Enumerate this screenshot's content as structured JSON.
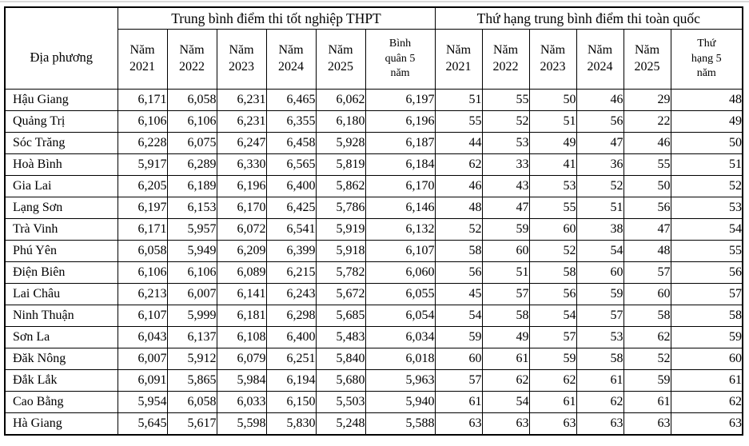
{
  "page": {
    "background": "#ffffff",
    "top_divider_color": "#d9d9d9",
    "table_border_color": "#000000"
  },
  "table": {
    "corner_header": "Địa phương",
    "groups": [
      {
        "label": "Trung bình điểm thi tốt nghiệp THPT"
      },
      {
        "label": "Thứ hạng trung bình điểm thi toàn quốc"
      }
    ],
    "year_headers": [
      "Năm\n2021",
      "Năm\n2022",
      "Năm\n2023",
      "Năm\n2024",
      "Năm\n2025"
    ],
    "avg_header": "Bình\nquân 5\nnăm",
    "rank5_header": "Thứ\nhạng 5\nnăm",
    "rows": [
      {
        "name": "Hậu Giang",
        "scores": [
          "6,171",
          "6,058",
          "6,231",
          "6,465",
          "6,062"
        ],
        "avg": "6,197",
        "ranks": [
          "51",
          "55",
          "50",
          "46",
          "29"
        ],
        "rank5": "48"
      },
      {
        "name": "Quảng Trị",
        "scores": [
          "6,106",
          "6,106",
          "6,231",
          "6,355",
          "6,180"
        ],
        "avg": "6,196",
        "ranks": [
          "55",
          "52",
          "51",
          "56",
          "22"
        ],
        "rank5": "49"
      },
      {
        "name": "Sóc Trăng",
        "scores": [
          "6,228",
          "6,075",
          "6,247",
          "6,458",
          "5,928"
        ],
        "avg": "6,187",
        "ranks": [
          "44",
          "53",
          "49",
          "47",
          "46"
        ],
        "rank5": "50"
      },
      {
        "name": "Hoà Bình",
        "scores": [
          "5,917",
          "6,289",
          "6,330",
          "6,565",
          "5,819"
        ],
        "avg": "6,184",
        "ranks": [
          "62",
          "33",
          "41",
          "36",
          "55"
        ],
        "rank5": "51"
      },
      {
        "name": "Gia Lai",
        "scores": [
          "6,205",
          "6,189",
          "6,196",
          "6,400",
          "5,862"
        ],
        "avg": "6,170",
        "ranks": [
          "46",
          "43",
          "53",
          "52",
          "50"
        ],
        "rank5": "52"
      },
      {
        "name": "Lạng Sơn",
        "scores": [
          "6,197",
          "6,153",
          "6,170",
          "6,425",
          "5,786"
        ],
        "avg": "6,146",
        "ranks": [
          "48",
          "47",
          "55",
          "51",
          "56"
        ],
        "rank5": "53"
      },
      {
        "name": "Trà Vinh",
        "scores": [
          "6,171",
          "5,957",
          "6,072",
          "6,541",
          "5,919"
        ],
        "avg": "6,132",
        "ranks": [
          "52",
          "59",
          "60",
          "38",
          "47"
        ],
        "rank5": "54"
      },
      {
        "name": "Phú Yên",
        "scores": [
          "6,058",
          "5,949",
          "6,209",
          "6,399",
          "5,918"
        ],
        "avg": "6,107",
        "ranks": [
          "58",
          "60",
          "52",
          "54",
          "48"
        ],
        "rank5": "55"
      },
      {
        "name": "Điện Biên",
        "scores": [
          "6,106",
          "6,106",
          "6,089",
          "6,215",
          "5,782"
        ],
        "avg": "6,060",
        "ranks": [
          "56",
          "51",
          "58",
          "60",
          "57"
        ],
        "rank5": "56"
      },
      {
        "name": "Lai Châu",
        "scores": [
          "6,213",
          "6,007",
          "6,141",
          "6,243",
          "5,672"
        ],
        "avg": "6,055",
        "ranks": [
          "45",
          "57",
          "56",
          "59",
          "60"
        ],
        "rank5": "57"
      },
      {
        "name": "Ninh Thuận",
        "scores": [
          "6,107",
          "5,999",
          "6,181",
          "6,298",
          "5,685"
        ],
        "avg": "6,054",
        "ranks": [
          "54",
          "58",
          "54",
          "57",
          "58"
        ],
        "rank5": "58"
      },
      {
        "name": "Sơn La",
        "scores": [
          "6,043",
          "6,137",
          "6,108",
          "6,400",
          "5,483"
        ],
        "avg": "6,034",
        "ranks": [
          "59",
          "49",
          "57",
          "53",
          "62"
        ],
        "rank5": "59"
      },
      {
        "name": "Đăk Nông",
        "scores": [
          "6,007",
          "5,912",
          "6,079",
          "6,251",
          "5,840"
        ],
        "avg": "6,018",
        "ranks": [
          "60",
          "61",
          "59",
          "58",
          "52"
        ],
        "rank5": "60"
      },
      {
        "name": "Đắk Lắk",
        "scores": [
          "6,091",
          "5,865",
          "5,984",
          "6,194",
          "5,680"
        ],
        "avg": "5,963",
        "ranks": [
          "57",
          "62",
          "62",
          "61",
          "59"
        ],
        "rank5": "61"
      },
      {
        "name": "Cao Bằng",
        "scores": [
          "5,954",
          "6,058",
          "6,033",
          "6,150",
          "5,503"
        ],
        "avg": "5,940",
        "ranks": [
          "61",
          "54",
          "61",
          "62",
          "61"
        ],
        "rank5": "62"
      },
      {
        "name": "Hà Giang",
        "scores": [
          "5,645",
          "5,617",
          "5,598",
          "5,830",
          "5,248"
        ],
        "avg": "5,588",
        "ranks": [
          "63",
          "63",
          "63",
          "63",
          "63"
        ],
        "rank5": "63"
      }
    ]
  }
}
